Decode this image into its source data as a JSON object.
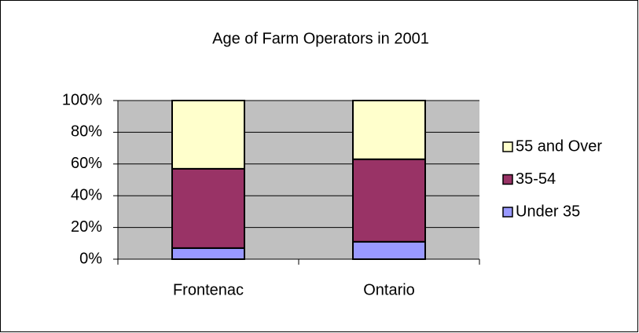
{
  "chart_data": {
    "type": "stacked_bar",
    "title": "Age of Farm Operators in 2001",
    "categories": [
      "Frontenac",
      "Ontario"
    ],
    "series": [
      {
        "name": "Under 35",
        "color": "#9999ff",
        "values": [
          7,
          11
        ]
      },
      {
        "name": "35-54",
        "color": "#993366",
        "values": [
          50,
          52
        ]
      },
      {
        "name": "55 and Over",
        "color": "#ffffcc",
        "values": [
          43,
          37
        ]
      }
    ],
    "ylim": [
      0,
      100
    ],
    "yticks": [
      {
        "value": 0,
        "label": "0%"
      },
      {
        "value": 20,
        "label": "20%"
      },
      {
        "value": 40,
        "label": "40%"
      },
      {
        "value": 60,
        "label": "60%"
      },
      {
        "value": 80,
        "label": "80%"
      },
      {
        "value": 100,
        "label": "100%"
      }
    ],
    "grid": true,
    "legend": "right"
  }
}
